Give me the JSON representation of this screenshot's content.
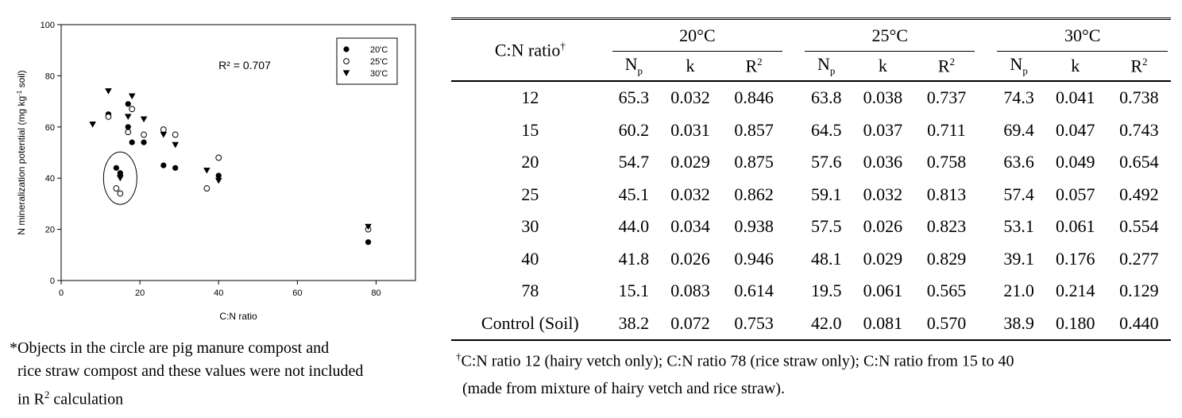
{
  "chart_data": {
    "type": "scatter",
    "xlabel": "C:N ratio",
    "ylabel": "N mineralization potential (mg kg-1 soil)",
    "ylabel_parts": {
      "pre": "N mineralization potential (mg kg",
      "sup": "-1",
      "post": " soil)"
    },
    "xlim": [
      0,
      90
    ],
    "ylim": [
      0,
      100
    ],
    "x_ticks": [
      0,
      20,
      40,
      60,
      80
    ],
    "y_ticks": [
      0,
      20,
      40,
      60,
      80,
      100
    ],
    "grid": false,
    "legend_position": "top-right",
    "annotation": "R² = 0.707",
    "series": [
      {
        "name": "20'C",
        "marker": "filled-circle",
        "points": [
          [
            12,
            65
          ],
          [
            14,
            44
          ],
          [
            15,
            42
          ],
          [
            15,
            41
          ],
          [
            17,
            60
          ],
          [
            17,
            69
          ],
          [
            18,
            54
          ],
          [
            21,
            54
          ],
          [
            26,
            45
          ],
          [
            29,
            44
          ],
          [
            40,
            41
          ],
          [
            78,
            15
          ]
        ]
      },
      {
        "name": "25'C",
        "marker": "open-circle",
        "points": [
          [
            12,
            64
          ],
          [
            14,
            36
          ],
          [
            15,
            34
          ],
          [
            17,
            58
          ],
          [
            18,
            67
          ],
          [
            21,
            57
          ],
          [
            26,
            59
          ],
          [
            29,
            57
          ],
          [
            37,
            36
          ],
          [
            40,
            48
          ],
          [
            78,
            20
          ]
        ]
      },
      {
        "name": "30'C",
        "marker": "filled-triangle",
        "points": [
          [
            8,
            61
          ],
          [
            12,
            74
          ],
          [
            15,
            40
          ],
          [
            17,
            64
          ],
          [
            18,
            72
          ],
          [
            21,
            63
          ],
          [
            26,
            57
          ],
          [
            29,
            53
          ],
          [
            37,
            43
          ],
          [
            40,
            39
          ],
          [
            78,
            21
          ]
        ]
      }
    ],
    "circled_group_center": [
      15,
      40
    ],
    "note": {
      "line1": "*Objects in the circle are pig manure compost and",
      "line2": "rice straw compost and these values were not included",
      "line3_pre": "in R",
      "line3_sup": "2",
      "line3_post": " calculation"
    }
  },
  "table": {
    "rowhead_label": "C:N  ratio",
    "rowhead_mark": "†",
    "groups": [
      "20°C",
      "25°C",
      "30°C"
    ],
    "sub_np": {
      "base": "N",
      "sub": "p"
    },
    "sub_k": "k",
    "sub_r2": {
      "base": "R",
      "sup": "2"
    },
    "rows": [
      {
        "label": "12",
        "v": [
          "65.3",
          "0.032",
          "0.846",
          "63.8",
          "0.038",
          "0.737",
          "74.3",
          "0.041",
          "0.738"
        ]
      },
      {
        "label": "15",
        "v": [
          "60.2",
          "0.031",
          "0.857",
          "64.5",
          "0.037",
          "0.711",
          "69.4",
          "0.047",
          "0.743"
        ]
      },
      {
        "label": "20",
        "v": [
          "54.7",
          "0.029",
          "0.875",
          "57.6",
          "0.036",
          "0.758",
          "63.6",
          "0.049",
          "0.654"
        ]
      },
      {
        "label": "25",
        "v": [
          "45.1",
          "0.032",
          "0.862",
          "59.1",
          "0.032",
          "0.813",
          "57.4",
          "0.057",
          "0.492"
        ]
      },
      {
        "label": "30",
        "v": [
          "44.0",
          "0.034",
          "0.938",
          "57.5",
          "0.026",
          "0.823",
          "53.1",
          "0.061",
          "0.554"
        ]
      },
      {
        "label": "40",
        "v": [
          "41.8",
          "0.026",
          "0.946",
          "48.1",
          "0.029",
          "0.829",
          "39.1",
          "0.176",
          "0.277"
        ]
      },
      {
        "label": "78",
        "v": [
          "15.1",
          "0.083",
          "0.614",
          "19.5",
          "0.061",
          "0.565",
          "21.0",
          "0.214",
          "0.129"
        ]
      },
      {
        "label": "Control  (Soil)",
        "v": [
          "38.2",
          "0.072",
          "0.753",
          "42.0",
          "0.081",
          "0.570",
          "38.9",
          "0.180",
          "0.440"
        ]
      }
    ],
    "footnote": {
      "mark": "†",
      "line1": "C:N ratio 12 (hairy vetch only); C:N ratio 78 (rice straw only); C:N ratio from 15 to 40",
      "line2": "(made from mixture of hairy vetch and rice straw)."
    }
  }
}
